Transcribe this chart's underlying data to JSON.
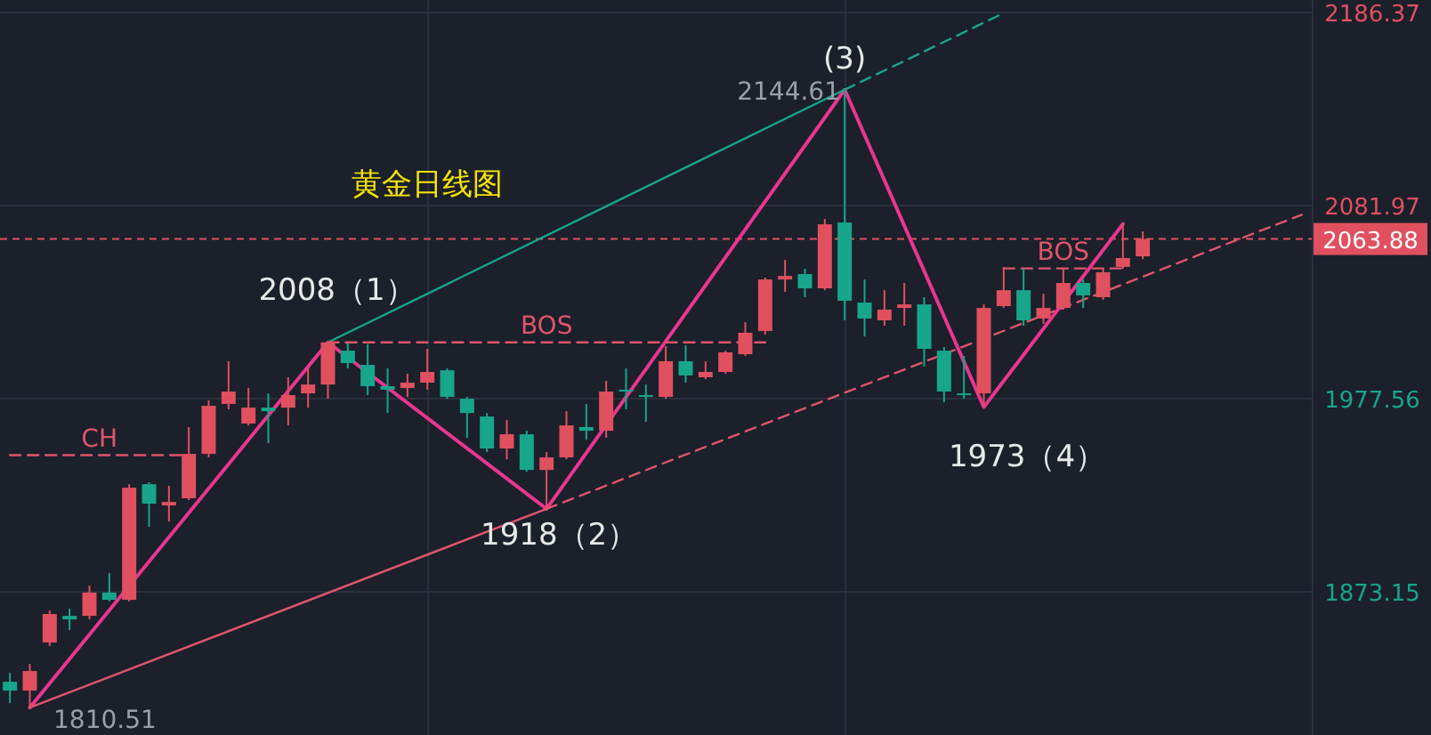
{
  "chart_data": {
    "type": "candlestick",
    "title": "黄金日线图",
    "categories": [
      null,
      null,
      null,
      null,
      null,
      null,
      null,
      null,
      null,
      null,
      null,
      null,
      null,
      null,
      null,
      null,
      null,
      null,
      null,
      null,
      null,
      null,
      null,
      null,
      null,
      null,
      null,
      null,
      null,
      null,
      null,
      null,
      null,
      null,
      null,
      null,
      null,
      null,
      null,
      null,
      null,
      null,
      null,
      null,
      null,
      null,
      null,
      null,
      null,
      null,
      null,
      null,
      null,
      null,
      null,
      null,
      null,
      null,
      null,
      null,
      null,
      null,
      null,
      null,
      null,
      null
    ],
    "ohlc": [
      [
        1824.5,
        1829.3,
        1813.0,
        1819.7
      ],
      [
        1819.7,
        1834.2,
        1810.51,
        1830.3
      ],
      [
        1845.7,
        1863.0,
        1843.8,
        1861.1
      ],
      [
        1860.1,
        1864.0,
        1852.4,
        1858.2
      ],
      [
        1860.1,
        1876.5,
        1858.2,
        1872.7
      ],
      [
        1872.7,
        1883.2,
        1867.9,
        1868.8
      ],
      [
        1868.8,
        1931.3,
        1867.9,
        1929.4
      ],
      [
        1931.3,
        1932.3,
        1908.3,
        1920.8
      ],
      [
        1919.8,
        1930.4,
        1911.1,
        1921.7
      ],
      [
        1923.7,
        1962.2,
        1922.7,
        1947.7
      ],
      [
        1947.7,
        1976.6,
        1945.8,
        1973.7
      ],
      [
        1974.7,
        1997.8,
        1971.8,
        1981.4
      ],
      [
        1964.1,
        1983.3,
        1963.0,
        1972.7
      ],
      [
        1972.7,
        1980.4,
        1953.5,
        1970.8
      ],
      [
        1972.7,
        1989.1,
        1963.1,
        1979.5
      ],
      [
        1980.4,
        1993.9,
        1972.7,
        1985.2
      ],
      [
        1985.2,
        2008.0,
        1977.5,
        2008.0
      ],
      [
        2003.5,
        2007.4,
        1993.9,
        1996.8
      ],
      [
        1995.8,
        2007.0,
        1979.5,
        1984.3
      ],
      [
        1984.3,
        1993.9,
        1969.8,
        1982.4
      ],
      [
        1983.3,
        1991.0,
        1978.5,
        1986.2
      ],
      [
        1986.2,
        2004.5,
        1982.4,
        1992.0
      ],
      [
        1992.9,
        1993.9,
        1977.5,
        1978.5
      ],
      [
        1977.5,
        1978.5,
        1956.4,
        1969.8
      ],
      [
        1967.9,
        1969.8,
        1948.7,
        1950.6
      ],
      [
        1950.6,
        1966.0,
        1944.8,
        1958.3
      ],
      [
        1958.3,
        1960.2,
        1938.1,
        1939.0
      ],
      [
        1939.0,
        1948.7,
        1918.0,
        1945.8
      ],
      [
        1945.8,
        1970.8,
        1944.8,
        1963.1
      ],
      [
        1962.2,
        1974.7,
        1955.4,
        1960.2
      ],
      [
        1960.2,
        1987.2,
        1956.4,
        1981.4
      ],
      [
        1982.4,
        1993.9,
        1971.8,
        1981.4
      ],
      [
        1979.5,
        1985.2,
        1965.0,
        1978.5
      ],
      [
        1978.5,
        2006.0,
        1977.5,
        1997.8
      ],
      [
        1997.8,
        2006.4,
        1986.2,
        1990.1
      ],
      [
        1989.1,
        1997.8,
        1988.1,
        1992.0
      ],
      [
        1992.0,
        2003.5,
        1991.0,
        2002.6
      ],
      [
        2001.6,
        2018.9,
        2000.6,
        2013.2
      ],
      [
        2014.1,
        2043.0,
        2012.2,
        2042.0
      ],
      [
        2042.0,
        2052.6,
        2035.3,
        2043.9
      ],
      [
        2044.9,
        2047.8,
        2032.4,
        2037.2
      ],
      [
        2037.2,
        2074.7,
        2036.2,
        2071.8
      ],
      [
        2072.8,
        2144.61,
        2019.9,
        2030.5
      ],
      [
        2029.5,
        2042.0,
        2011.2,
        2020.9
      ],
      [
        2019.9,
        2036.2,
        2017.0,
        2025.7
      ],
      [
        2026.6,
        2040.1,
        2017.0,
        2028.5
      ],
      [
        2028.5,
        2032.4,
        1994.9,
        2004.5
      ],
      [
        2003.5,
        2005.5,
        1975.6,
        1981.4
      ],
      [
        1980.4,
        2000.6,
        1977.5,
        1979.5
      ],
      [
        1980.4,
        2028.5,
        1973,
        2026.6
      ],
      [
        2027.6,
        2048.8,
        2026.6,
        2036.2
      ],
      [
        2036.2,
        2047.8,
        2017.0,
        2019.9
      ],
      [
        2020.9,
        2034.3,
        2018.0,
        2026.6
      ],
      [
        2026.6,
        2047.8,
        2025.7,
        2040.1
      ],
      [
        2040.1,
        2042.0,
        2026.6,
        2033.4
      ],
      [
        2032.4,
        2047.8,
        2031.0,
        2045.9
      ],
      [
        2048.8,
        2071.8,
        2047.8,
        2053.6
      ],
      [
        2054.5,
        2068.0,
        2053.0,
        2063.88
      ],
      null,
      null,
      null,
      null,
      null,
      null,
      null,
      null
    ],
    "series": [
      {
        "type": "line",
        "color": "#e8368f",
        "line_style": "solid",
        "values": [
          null,
          1810.51,
          null,
          null,
          null,
          null,
          null,
          null,
          null,
          null,
          null,
          null,
          null,
          null,
          null,
          null,
          2008,
          null,
          null,
          null,
          null,
          null,
          null,
          null,
          null,
          null,
          null,
          1918,
          null,
          null,
          null,
          null,
          null,
          null,
          null,
          null,
          null,
          null,
          null,
          null,
          null,
          null,
          2144.61,
          null,
          null,
          null,
          null,
          null,
          null,
          1973,
          null,
          null,
          null,
          null,
          null,
          null,
          2072,
          null,
          null,
          null,
          null,
          null,
          null,
          null,
          null,
          null
        ]
      },
      {
        "type": "line",
        "color": "#17a58c",
        "line_style": "solid",
        "values": [
          null,
          null,
          null,
          null,
          null,
          null,
          null,
          null,
          null,
          null,
          null,
          null,
          null,
          null,
          null,
          null,
          2008,
          null,
          null,
          null,
          null,
          null,
          null,
          null,
          null,
          null,
          null,
          null,
          null,
          null,
          null,
          null,
          null,
          null,
          null,
          null,
          null,
          null,
          null,
          null,
          null,
          null,
          2144.61,
          null,
          null,
          null,
          null,
          null,
          null,
          null,
          null,
          null,
          null,
          null,
          null,
          null,
          null,
          null,
          null,
          null,
          null,
          null,
          null,
          null,
          null,
          null
        ]
      },
      {
        "type": "line",
        "color": "#17a58c",
        "line_style": "dashed",
        "values": [
          null,
          null,
          null,
          null,
          null,
          null,
          null,
          null,
          null,
          null,
          null,
          null,
          null,
          null,
          null,
          null,
          null,
          null,
          null,
          null,
          null,
          null,
          null,
          null,
          null,
          null,
          null,
          null,
          null,
          null,
          null,
          null,
          null,
          null,
          null,
          null,
          null,
          null,
          null,
          null,
          null,
          null,
          2144.61,
          null,
          null,
          null,
          null,
          null,
          null,
          null,
          2186,
          null,
          null,
          null,
          null,
          null,
          null,
          null,
          null,
          null,
          null,
          null,
          null,
          null,
          null,
          null
        ]
      },
      {
        "type": "line",
        "color": "#e0556a",
        "line_style": "solid",
        "values": [
          null,
          1810.51,
          null,
          null,
          null,
          null,
          null,
          null,
          null,
          null,
          null,
          null,
          null,
          null,
          null,
          null,
          null,
          null,
          null,
          null,
          null,
          null,
          null,
          null,
          null,
          null,
          null,
          1918,
          null,
          null,
          null,
          null,
          null,
          null,
          null,
          null,
          null,
          null,
          null,
          null,
          null,
          null,
          null,
          null,
          null,
          null,
          null,
          null,
          null,
          null,
          null,
          null,
          null,
          null,
          null,
          null,
          null,
          null,
          null,
          null,
          null,
          null,
          null,
          null,
          null,
          null
        ]
      },
      {
        "type": "line",
        "color": "#e0556a",
        "line_style": "dashed",
        "values": [
          null,
          null,
          null,
          null,
          null,
          null,
          null,
          null,
          null,
          null,
          null,
          null,
          null,
          null,
          null,
          null,
          null,
          null,
          null,
          null,
          null,
          null,
          null,
          null,
          null,
          null,
          null,
          1918,
          null,
          null,
          null,
          null,
          null,
          null,
          null,
          null,
          null,
          null,
          null,
          null,
          null,
          null,
          null,
          null,
          null,
          null,
          null,
          null,
          null,
          null,
          null,
          null,
          null,
          null,
          null,
          null,
          null,
          null,
          null,
          null,
          null,
          null,
          null,
          null,
          null,
          2077
        ]
      },
      {
        "type": "line",
        "name": "CH",
        "color": "#e0556a",
        "line_style": "dashed",
        "values": [
          1947,
          null,
          null,
          null,
          null,
          null,
          null,
          null,
          null,
          1947,
          null,
          null,
          null,
          null,
          null,
          null,
          null,
          null,
          null,
          null,
          null,
          null,
          null,
          null,
          null,
          null,
          null,
          null,
          null,
          null,
          null,
          null,
          null,
          null,
          null,
          null,
          null,
          null,
          null,
          null,
          null,
          null,
          null,
          null,
          null,
          null,
          null,
          null,
          null,
          null,
          null,
          null,
          null,
          null,
          null,
          null,
          null,
          null,
          null,
          null,
          null,
          null,
          null,
          null,
          null,
          null
        ]
      },
      {
        "type": "line",
        "name": "BOS",
        "color": "#e0556a",
        "line_style": "dashed",
        "values": [
          null,
          null,
          null,
          null,
          null,
          null,
          null,
          null,
          null,
          null,
          null,
          null,
          null,
          null,
          null,
          null,
          2008,
          null,
          null,
          null,
          null,
          null,
          null,
          null,
          null,
          null,
          null,
          null,
          null,
          null,
          null,
          null,
          null,
          null,
          null,
          null,
          null,
          null,
          2008,
          null,
          null,
          null,
          null,
          null,
          null,
          null,
          null,
          null,
          null,
          null,
          null,
          null,
          null,
          null,
          null,
          null,
          null,
          null,
          null,
          null,
          null,
          null,
          null,
          null,
          null,
          null
        ]
      },
      {
        "type": "line",
        "name": "BOS",
        "color": "#e0556a",
        "line_style": "dashed",
        "values": [
          null,
          null,
          null,
          null,
          null,
          null,
          null,
          null,
          null,
          null,
          null,
          null,
          null,
          null,
          null,
          null,
          null,
          null,
          null,
          null,
          null,
          null,
          null,
          null,
          null,
          null,
          null,
          null,
          null,
          null,
          null,
          null,
          null,
          null,
          null,
          null,
          null,
          null,
          null,
          null,
          null,
          null,
          null,
          null,
          null,
          null,
          null,
          null,
          null,
          null,
          2048,
          null,
          null,
          null,
          null,
          null,
          2048,
          null,
          null,
          null,
          null,
          null,
          null,
          null,
          null,
          null
        ]
      }
    ],
    "annotations": [
      {
        "text": "2008（1）",
        "y": 2008
      },
      {
        "text": "1918（2）",
        "y": 1918
      },
      {
        "text": "(3)",
        "y": 2144.61
      },
      "2144.61",
      "1973（4）",
      "1810.51"
    ],
    "ref_lines": [
      {
        "axis": "y",
        "value": 2063.88,
        "label": "2063.88",
        "color": "#e0505f",
        "line_style": "dotted"
      }
    ],
    "ylim": [
      1795.7,
      2193.1
    ],
    "yticks": [
      1873.15,
      1977.56,
      2081.97,
      2186.37
    ],
    "tick_labels": "y",
    "grid": true
  }
}
